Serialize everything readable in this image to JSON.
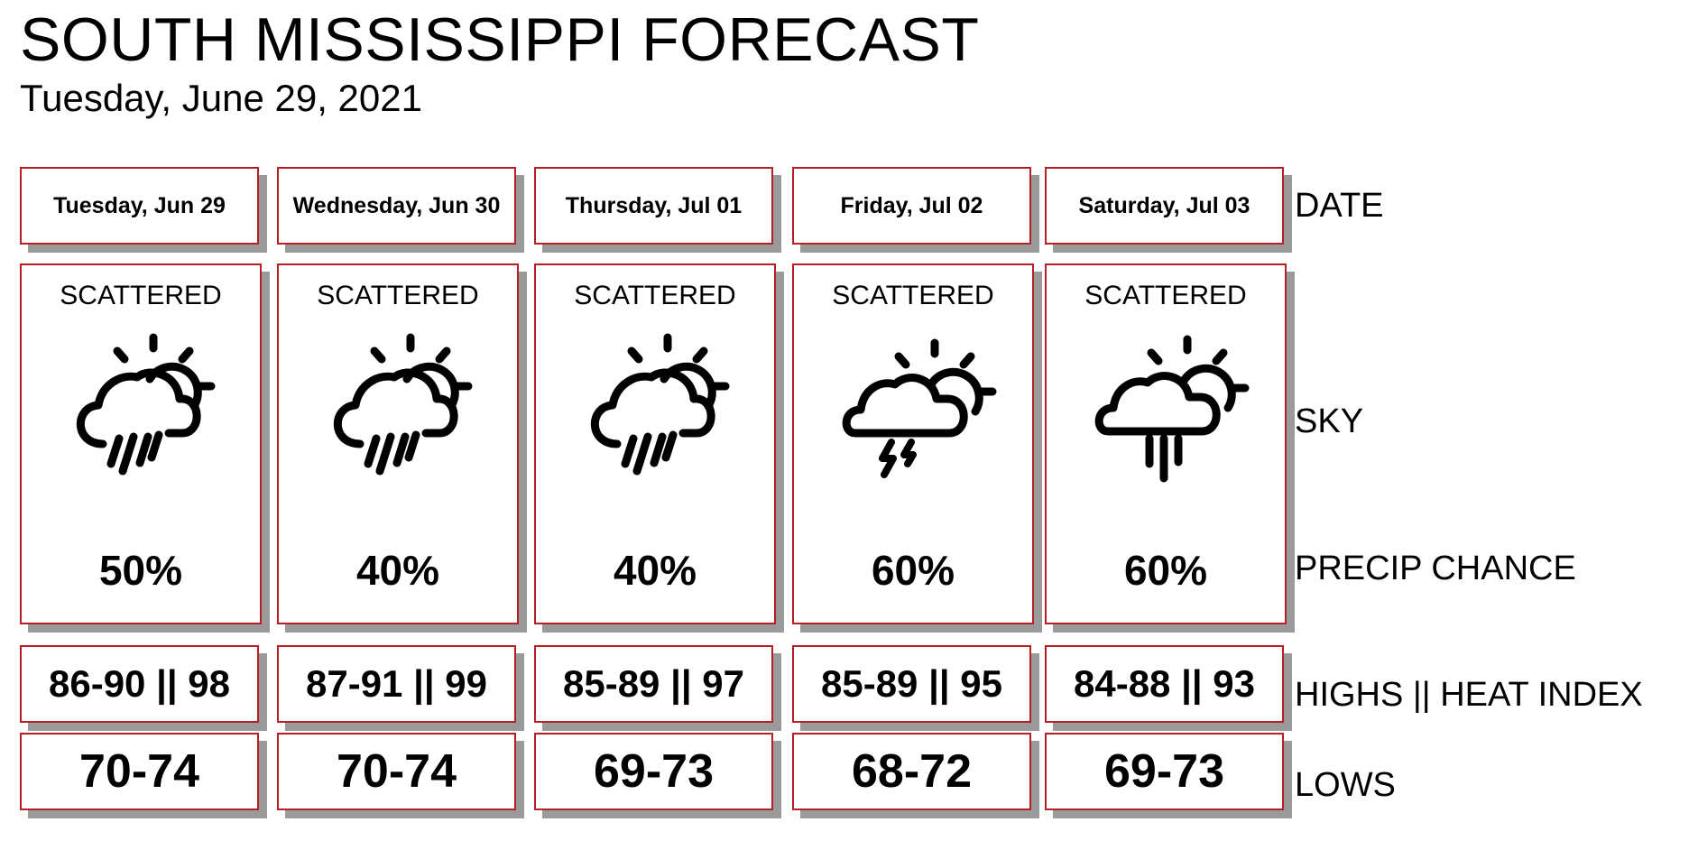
{
  "header": {
    "title": "SOUTH MISSISSIPPI FORECAST",
    "subtitle": "Tuesday, June 29, 2021"
  },
  "row_labels": {
    "date": "DATE",
    "sky": "SKY",
    "precip": "PRECIP CHANCE",
    "highs": "HIGHS || HEAT INDEX",
    "lows": "LOWS"
  },
  "days": [
    {
      "date": "Tuesday, Jun 29",
      "sky": "SCATTERED",
      "icon": "sun-cloud-rain-icon",
      "precip": "50%",
      "highs": "86-90 || 98",
      "lows": "70-74"
    },
    {
      "date": "Wednesday, Jun 30",
      "sky": "SCATTERED",
      "icon": "sun-cloud-rain-icon",
      "precip": "40%",
      "highs": "87-91 || 99",
      "lows": "70-74"
    },
    {
      "date": "Thursday, Jul 01",
      "sky": "SCATTERED",
      "icon": "sun-cloud-rain-icon",
      "precip": "40%",
      "highs": "85-89 || 97",
      "lows": "69-73"
    },
    {
      "date": "Friday, Jul 02",
      "sky": "SCATTERED",
      "icon": "sun-cloud-thunderstorm-icon",
      "precip": "60%",
      "highs": "85-89 || 95",
      "lows": "68-72"
    },
    {
      "date": "Saturday, Jul 03",
      "sky": "SCATTERED",
      "icon": "sun-cloud-showers-icon",
      "precip": "60%",
      "highs": "84-88 || 93",
      "lows": "69-73"
    }
  ],
  "colors": {
    "border": "#b52025",
    "shadow": "#9a9a9a",
    "text": "#000000",
    "background": "#ffffff"
  }
}
